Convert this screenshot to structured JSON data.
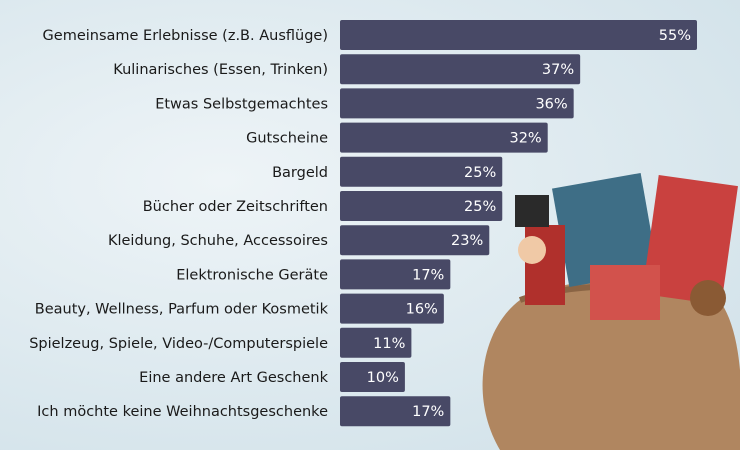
{
  "chart_data": {
    "type": "bar",
    "orientation": "horizontal",
    "categories": [
      "Gemeinsame Erlebnisse (z.B. Ausflüge)",
      "Kulinarisches (Essen, Trinken)",
      "Etwas Selbstgemachtes",
      "Gutscheine",
      "Bargeld",
      "Bücher oder Zeitschriften",
      "Kleidung, Schuhe, Accessoires",
      "Elektronische Geräte",
      "Beauty, Wellness, Parfum oder Kosmetik",
      "Spielzeug, Spiele, Video-/Computerspiele",
      "Eine andere Art Geschenk",
      "Ich möchte keine Weihnachtsgeschenke"
    ],
    "values": [
      55,
      37,
      36,
      32,
      25,
      25,
      23,
      17,
      16,
      11,
      10,
      17
    ],
    "value_labels": [
      "55%",
      "37%",
      "36%",
      "32%",
      "25%",
      "25%",
      "23%",
      "17%",
      "16%",
      "11%",
      "10%",
      "17%"
    ],
    "unit": "%",
    "xlim": [
      0,
      55
    ],
    "grid": false,
    "bar_color": "#484966",
    "background_color": "#dbe8ee"
  }
}
